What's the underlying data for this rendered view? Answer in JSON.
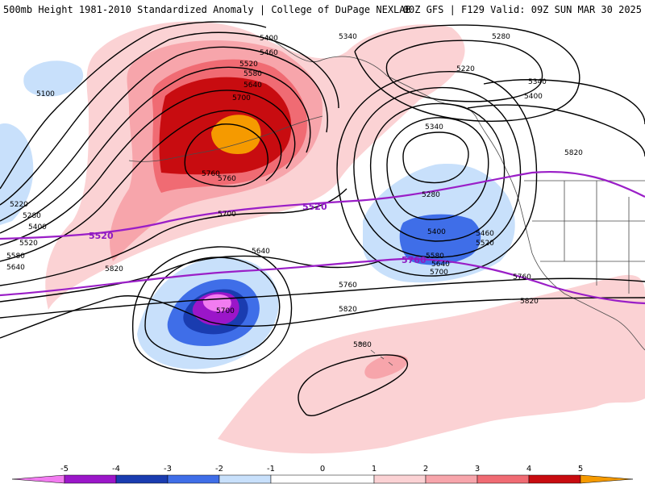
{
  "header": {
    "title_left": "500mb Height 1981-2010 Standardized Anomaly | College of DuPage NEXLAB",
    "title_right": "00Z GFS | F129 Valid: 09Z SUN MAR 30 2025"
  },
  "colors": {
    "neg5": "#f27cf0",
    "neg4": "#9b16c9",
    "neg3": "#1a3cb0",
    "neg2": "#3f6ee8",
    "neg1": "#c8e0fb",
    "pos1": "#fbd2d4",
    "pos2": "#f7a5ab",
    "pos3": "#f06b73",
    "pos4": "#c80c10",
    "pos5": "#f59a00",
    "contour": "#000000",
    "special": "#9a1ec7"
  },
  "colorbar": {
    "ticks": [
      "-5",
      "-4",
      "-3",
      "-2",
      "-1",
      "0",
      "1",
      "2",
      "3",
      "4",
      "5"
    ]
  },
  "contours": {
    "labels": [
      "5100",
      "5400",
      "5460",
      "5520",
      "5580",
      "5640",
      "5700",
      "5760",
      "5340",
      "5280",
      "5220",
      "5340",
      "5400",
      "5340",
      "5280",
      "5220",
      "5280",
      "5400",
      "5520",
      "5580",
      "5640",
      "5700",
      "5760",
      "5820",
      "5640",
      "5700",
      "5820",
      "5880",
      "5760",
      "5820",
      "5400",
      "5460",
      "5520",
      "5580",
      "5640",
      "5700",
      "5760",
      "5820"
    ],
    "special": [
      "5520",
      "5520",
      "5760"
    ]
  }
}
